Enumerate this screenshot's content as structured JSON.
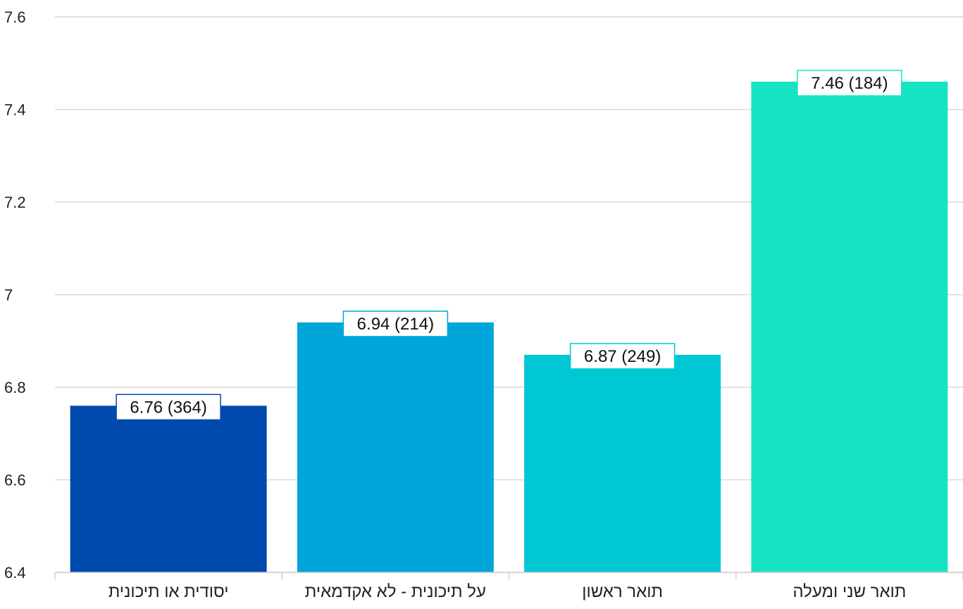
{
  "chart_data": {
    "type": "bar",
    "categories": [
      "יסודית או תיכונית",
      "על תיכונית - לא אקדמאית",
      "תואר ראשון",
      "תואר שני ומעלה"
    ],
    "values": [
      6.76,
      6.94,
      6.87,
      7.46
    ],
    "counts": [
      364,
      214,
      249,
      184
    ],
    "data_labels": [
      "6.76 (364)",
      "6.94 (214)",
      "6.87 (249)",
      "7.46 (184)"
    ],
    "colors": [
      "#004aad",
      "#00a6da",
      "#00c7d4",
      "#15e3c3"
    ],
    "ylim": [
      6.4,
      7.6
    ],
    "yticks": [
      6.4,
      6.6,
      6.8,
      7.0,
      7.2,
      7.4,
      7.6
    ],
    "ytick_labels": [
      "6.4",
      "6.6",
      "6.8",
      "7",
      "7.2",
      "7.4",
      "7.6"
    ],
    "grid": true,
    "title": "",
    "xlabel": "",
    "ylabel": ""
  }
}
